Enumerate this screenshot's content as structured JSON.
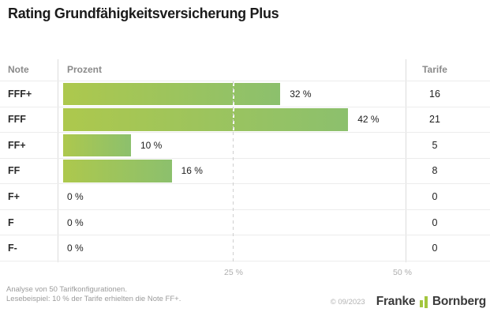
{
  "title": "Rating Grundfähigkeitsversicherung Plus",
  "table": {
    "col_note": "Note",
    "col_prozent": "Prozent",
    "col_tarife": "Tarife"
  },
  "chart_data": {
    "type": "bar",
    "orientation": "horizontal",
    "title": "Rating Grundfähigkeitsversicherung Plus",
    "categories": [
      "FFF+",
      "FFF",
      "FF+",
      "FF",
      "F+",
      "F",
      "F-"
    ],
    "series": [
      {
        "name": "Prozent",
        "unit": "%",
        "values": [
          32,
          42,
          10,
          16,
          0,
          0,
          0
        ]
      },
      {
        "name": "Tarife",
        "values": [
          16,
          21,
          5,
          8,
          0,
          0,
          0
        ]
      }
    ],
    "value_labels": [
      "32 %",
      "42 %",
      "10 %",
      "16 %",
      "0 %",
      "0 %",
      "0 %"
    ],
    "xlim": [
      0,
      50
    ],
    "x_ticks": [
      "25 %",
      "50 %"
    ],
    "gridlines": "dashed vertical at 25 %, solid column rule at 50 %",
    "bar_gradient": [
      "#adc84d",
      "#8cc06d"
    ]
  },
  "footer": {
    "note_line1": "Analyse von 50 Tarifkonfigurationen.",
    "note_line2": "Lesebeispiel: 10 % der Tarife erhielten die Note FF+.",
    "copyright": "© 09/2023",
    "brand_left": "Franke",
    "brand_right": "Bornberg",
    "brand_icon": "double-bars"
  },
  "colors": {
    "bar_gradient_start": "#adc84d",
    "bar_gradient_end": "#8cc06d",
    "brand_green": "#a3c63e",
    "grid_gray": "#cfcfcf"
  }
}
